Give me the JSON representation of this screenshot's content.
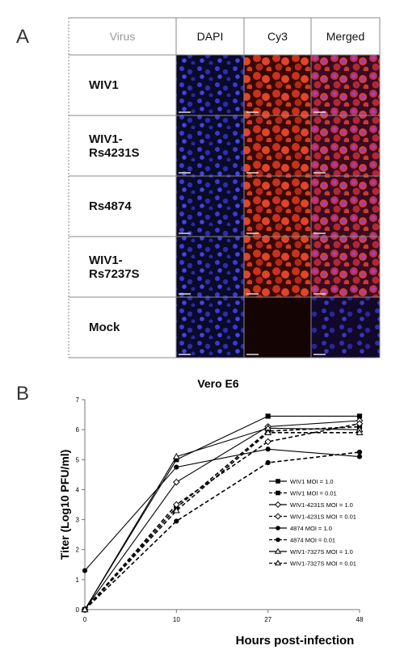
{
  "panel_a": {
    "label": "A",
    "headers": [
      "Virus",
      "DAPI",
      "Cy3",
      "Merged"
    ],
    "rows": [
      "WIV1",
      "WIV1-Rs4231S",
      "Rs4874",
      "WIV1-Rs7237S",
      "Mock"
    ]
  },
  "panel_b": {
    "label": "B"
  },
  "chart_data": {
    "type": "line",
    "title": "Vero E6",
    "x_label": "Hours post-infection",
    "y_label": "Titer (Log10 PFU/ml)",
    "categories": [
      "0",
      "10",
      "27",
      "48"
    ],
    "ylim": [
      0,
      7
    ],
    "yticks": [
      0,
      1,
      2,
      3,
      4,
      5,
      6,
      7
    ],
    "series": [
      {
        "name": "WIV1 MOI = 1.0",
        "color": "#000000",
        "marker": "square",
        "filled": true,
        "dashed": false,
        "values": [
          0,
          5.0,
          6.45,
          6.45
        ]
      },
      {
        "name": "WIV1 MOI = 0.01",
        "color": "#000000",
        "marker": "square",
        "filled": true,
        "dashed": true,
        "values": [
          0,
          3.4,
          5.95,
          6.1
        ]
      },
      {
        "name": "WIV1-4231S MOI = 1.0",
        "color": "#000000",
        "marker": "diamond",
        "filled": false,
        "dashed": false,
        "values": [
          0,
          4.25,
          6.1,
          6.3
        ]
      },
      {
        "name": "WIV1-4231S MOI = 0.01",
        "color": "#000000",
        "marker": "diamond",
        "filled": false,
        "dashed": true,
        "values": [
          0,
          3.5,
          5.6,
          6.2
        ]
      },
      {
        "name": "4874 MOI = 1.0",
        "color": "#000000",
        "marker": "circle",
        "filled": true,
        "dashed": false,
        "values": [
          1.3,
          4.75,
          5.35,
          5.1
        ]
      },
      {
        "name": "4874 MOI = 0.01",
        "color": "#000000",
        "marker": "circle",
        "filled": true,
        "dashed": true,
        "values": [
          0,
          2.95,
          4.9,
          5.25
        ]
      },
      {
        "name": "WIV1-7327S MOI = 1.0",
        "color": "#000000",
        "marker": "triangle",
        "filled": false,
        "dashed": false,
        "values": [
          0,
          5.1,
          6.05,
          6.0
        ]
      },
      {
        "name": "WIV1-7327S MOI = 0.01",
        "color": "#000000",
        "marker": "triangle",
        "filled": false,
        "dashed": true,
        "values": [
          0,
          3.3,
          5.9,
          5.9
        ]
      }
    ]
  }
}
